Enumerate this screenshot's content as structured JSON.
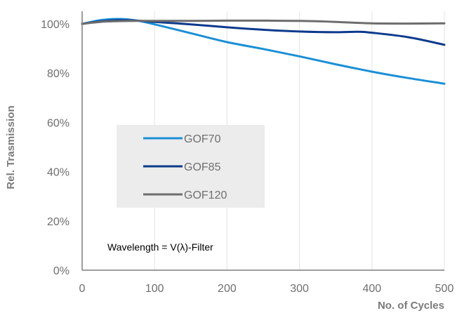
{
  "chart_data": {
    "type": "line",
    "title": "",
    "xlabel": "No. of Cycles",
    "ylabel": "Rel. Trasmission",
    "xlim": [
      0,
      500
    ],
    "ylim": [
      0,
      100
    ],
    "xticks": [
      0,
      100,
      200,
      300,
      400,
      500
    ],
    "yticks": [
      0,
      20,
      40,
      60,
      80,
      100
    ],
    "ytick_labels": [
      "0%",
      "20%",
      "40%",
      "60%",
      "80%",
      "100%"
    ],
    "grid": "vertical",
    "legend_position": "left-center",
    "annotation": "Wavelength = V(λ)-Filter",
    "series": [
      {
        "name": "GOF70",
        "color": "#1b8fd6",
        "x": [
          0,
          25,
          50,
          75,
          100,
          150,
          200,
          250,
          300,
          350,
          400,
          450,
          500
        ],
        "y": [
          100,
          101.5,
          102,
          101.4,
          99.8,
          96.2,
          92.6,
          89.8,
          86.8,
          83.6,
          80.6,
          78.0,
          75.7
        ]
      },
      {
        "name": "GOF85",
        "color": "#0b3a8c",
        "x": [
          0,
          25,
          50,
          75,
          100,
          150,
          200,
          250,
          300,
          350,
          380,
          400,
          450,
          500
        ],
        "y": [
          100,
          101.0,
          101.5,
          101.3,
          100.8,
          99.8,
          98.6,
          97.6,
          96.9,
          96.6,
          96.8,
          96.4,
          94.6,
          91.5
        ]
      },
      {
        "name": "GOF120",
        "color": "#6d6d6d",
        "x": [
          0,
          25,
          50,
          75,
          100,
          150,
          200,
          250,
          300,
          350,
          400,
          450,
          500
        ],
        "y": [
          100,
          100.8,
          101.1,
          101.2,
          101.2,
          101.2,
          101.3,
          101.3,
          101.2,
          100.8,
          100.2,
          100.1,
          100.2
        ]
      }
    ]
  }
}
